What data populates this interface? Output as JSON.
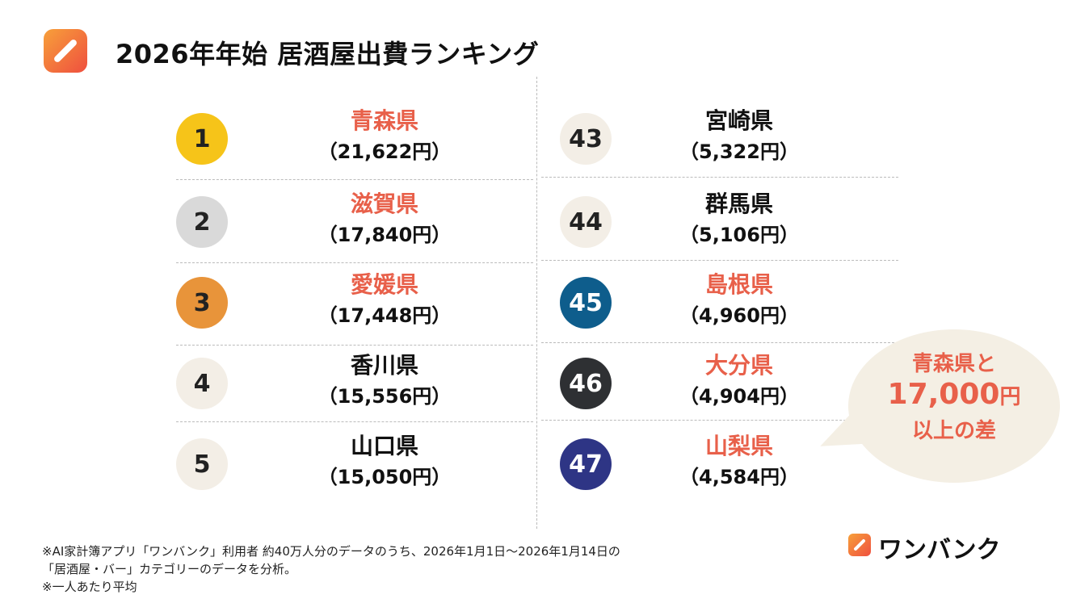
{
  "title": "2026年年始 居酒屋出費ランキング",
  "colors": {
    "accent": "#e8604a",
    "bubble": "#f4efe4"
  },
  "top_ranks": [
    {
      "rank": "1",
      "prefecture": "青森県",
      "amount": "（21,622円）",
      "highlight": true,
      "badge_color": "#f6c419",
      "badge_text": "#222"
    },
    {
      "rank": "2",
      "prefecture": "滋賀県",
      "amount": "（17,840円）",
      "highlight": true,
      "badge_color": "#d9d9d9",
      "badge_text": "#222"
    },
    {
      "rank": "3",
      "prefecture": "愛媛県",
      "amount": "（17,448円）",
      "highlight": true,
      "badge_color": "#e8943a",
      "badge_text": "#222"
    },
    {
      "rank": "4",
      "prefecture": "香川県",
      "amount": "（15,556円）",
      "highlight": false,
      "badge_color": "#f3eee6",
      "badge_text": "#222"
    },
    {
      "rank": "5",
      "prefecture": "山口県",
      "amount": "（15,050円）",
      "highlight": false,
      "badge_color": "#f3eee6",
      "badge_text": "#222"
    }
  ],
  "bottom_ranks": [
    {
      "rank": "43",
      "prefecture": "宮崎県",
      "amount": "（5,322円）",
      "highlight": false,
      "badge_color": "#f3eee6",
      "badge_text": "#222"
    },
    {
      "rank": "44",
      "prefecture": "群馬県",
      "amount": "（5,106円）",
      "highlight": false,
      "badge_color": "#f3eee6",
      "badge_text": "#222"
    },
    {
      "rank": "45",
      "prefecture": "島根県",
      "amount": "（4,960円）",
      "highlight": true,
      "badge_color": "#0e5d8c",
      "badge_text": "#fff"
    },
    {
      "rank": "46",
      "prefecture": "大分県",
      "amount": "（4,904円）",
      "highlight": true,
      "badge_color": "#2e3033",
      "badge_text": "#fff"
    },
    {
      "rank": "47",
      "prefecture": "山梨県",
      "amount": "（4,584円）",
      "highlight": true,
      "badge_color": "#2e3585",
      "badge_text": "#fff"
    }
  ],
  "bubble": {
    "line1": "青森県と",
    "amount": "17,000",
    "unit": "円",
    "line3": "以上の差"
  },
  "footnotes": [
    "※AI家計簿アプリ「ワンバンク」利用者 約40万人分のデータのうち、2026年1月1日〜2026年1月14日の",
    "「居酒屋・バー」カテゴリーのデータを分析。",
    "※一人あたり平均"
  ],
  "brand": "ワンバンク"
}
